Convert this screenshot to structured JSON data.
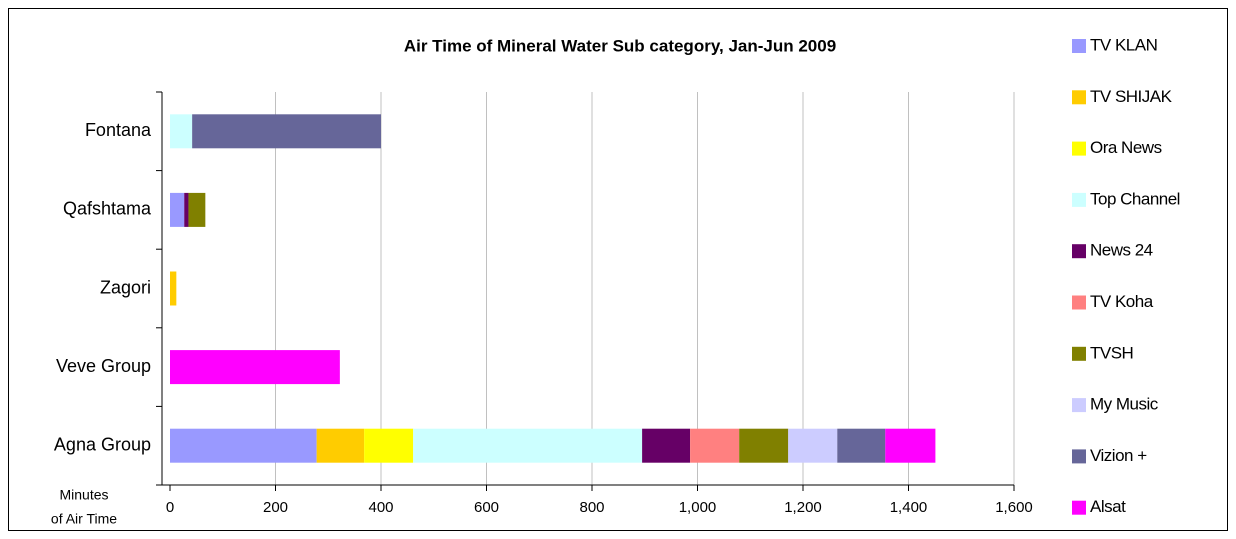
{
  "chart_data": {
    "type": "stacked-bar-horizontal",
    "title": "Air Time of Mineral Water Sub category, Jan-Jun 2009",
    "x_label_lines": [
      "Minutes",
      "of Air Time"
    ],
    "categories": [
      "Fontana",
      "Qafshtama",
      "Zagori",
      "Veve Group",
      "Agna Group"
    ],
    "series": [
      {
        "name": "TV KLAN",
        "color": "#9999ff",
        "values": [
          0,
          27,
          0,
          0,
          278
        ]
      },
      {
        "name": "TV SHIJAK",
        "color": "#ffcc00",
        "values": [
          0,
          0,
          12,
          0,
          90
        ]
      },
      {
        "name": "Ora News",
        "color": "#ffff00",
        "values": [
          0,
          0,
          0,
          0,
          93
        ]
      },
      {
        "name": "Top Channel",
        "color": "#ccffff",
        "values": [
          42,
          0,
          0,
          0,
          434
        ]
      },
      {
        "name": "News 24",
        "color": "#660066",
        "values": [
          0,
          8,
          0,
          0,
          91
        ]
      },
      {
        "name": "TV Koha",
        "color": "#ff8080",
        "values": [
          0,
          0,
          0,
          0,
          93
        ]
      },
      {
        "name": "TVSH",
        "color": "#808000",
        "values": [
          0,
          32,
          0,
          0,
          93
        ]
      },
      {
        "name": "My Music",
        "color": "#ccccff",
        "values": [
          0,
          0,
          0,
          0,
          93
        ]
      },
      {
        "name": "Vizion +",
        "color": "#666699",
        "values": [
          358,
          0,
          0,
          0,
          91
        ]
      },
      {
        "name": "Alsat",
        "color": "#ff00ff",
        "values": [
          0,
          0,
          0,
          322,
          95
        ]
      }
    ],
    "xlim": [
      0,
      1600
    ],
    "xticks": [
      0,
      200,
      400,
      600,
      800,
      {
        "value": 1000,
        "label": "1,000"
      },
      {
        "value": 1200,
        "label": "1,200"
      },
      {
        "value": 1400,
        "label": "1,400"
      },
      {
        "value": 1600,
        "label": "1,600"
      }
    ],
    "grid": true,
    "legend": "right"
  }
}
